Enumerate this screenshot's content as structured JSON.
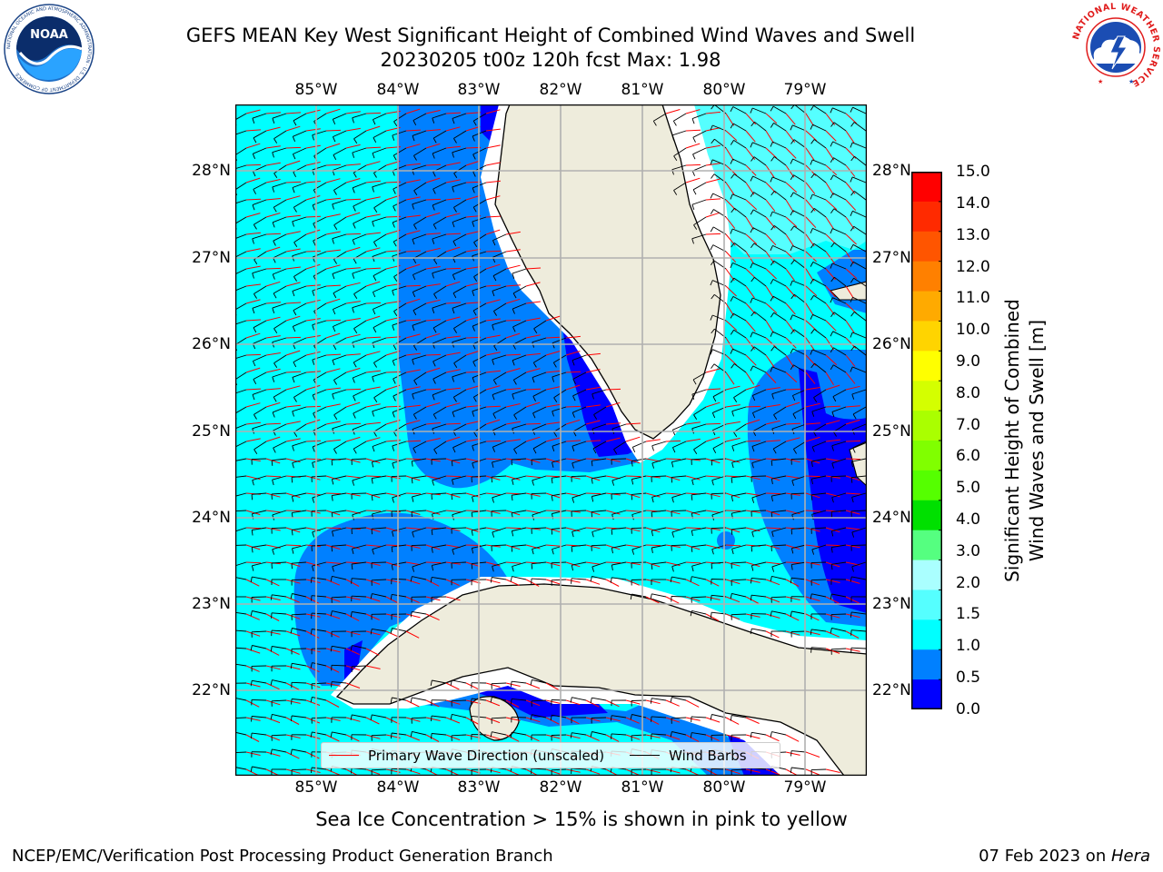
{
  "title": {
    "line1": "GEFS MEAN Key West Significant Height of Combined Wind Waves and Swell",
    "line2": "20230205 t00z 120h fcst   Max: 1.98"
  },
  "logos": {
    "noaa_text": "NOAA",
    "noaa_ring": "NATIONAL OCEANIC AND ATMOSPHERIC ADMINISTRATION · U.S. DEPARTMENT OF COMMERCE",
    "nws_ring": "NATIONAL WEATHER SERVICE"
  },
  "map": {
    "lon_labels": [
      "85°W",
      "84°W",
      "83°W",
      "82°W",
      "81°W",
      "80°W",
      "79°W"
    ],
    "lat_labels": [
      "28°N",
      "27°N",
      "26°N",
      "25°N",
      "24°N",
      "23°N",
      "22°N"
    ],
    "ocean_colors": {
      "light": "#00ffff",
      "medium": "#0080ff",
      "dark": "#0000ff",
      "land": "#eeecdc"
    },
    "legend": {
      "wave_label": "Primary Wave Direction (unscaled)",
      "wave_color": "#ff0000",
      "wind_label": "Wind Barbs",
      "wind_color": "#000000"
    }
  },
  "colorbar": {
    "title_line1": "Significant Height of Combined",
    "title_line2": "Wind Waves and Swell [m]",
    "ticks": [
      "15.0",
      "14.0",
      "13.0",
      "12.0",
      "11.0",
      "10.0",
      "9.0",
      "8.0",
      "7.0",
      "6.0",
      "5.0",
      "4.0",
      "3.0",
      "2.0",
      "1.5",
      "1.0",
      "0.5",
      "0.0"
    ],
    "colors_top_to_bottom": [
      "#ff0000",
      "#ff2a00",
      "#ff5500",
      "#ff8000",
      "#ffaa00",
      "#ffd400",
      "#ffff00",
      "#d4ff00",
      "#aaff00",
      "#80ff00",
      "#55ff00",
      "#00e000",
      "#55ff80",
      "#aaffff",
      "#55ffff",
      "#00ffff",
      "#0080ff",
      "#0000ff"
    ]
  },
  "note": "Sea Ice Concentration > 15% is shown in pink to yellow",
  "footer": {
    "left": "NCEP/EMC/Verification Post Processing Product Generation Branch",
    "right_date": "07 Feb 2023 on ",
    "right_host": "Hera"
  }
}
